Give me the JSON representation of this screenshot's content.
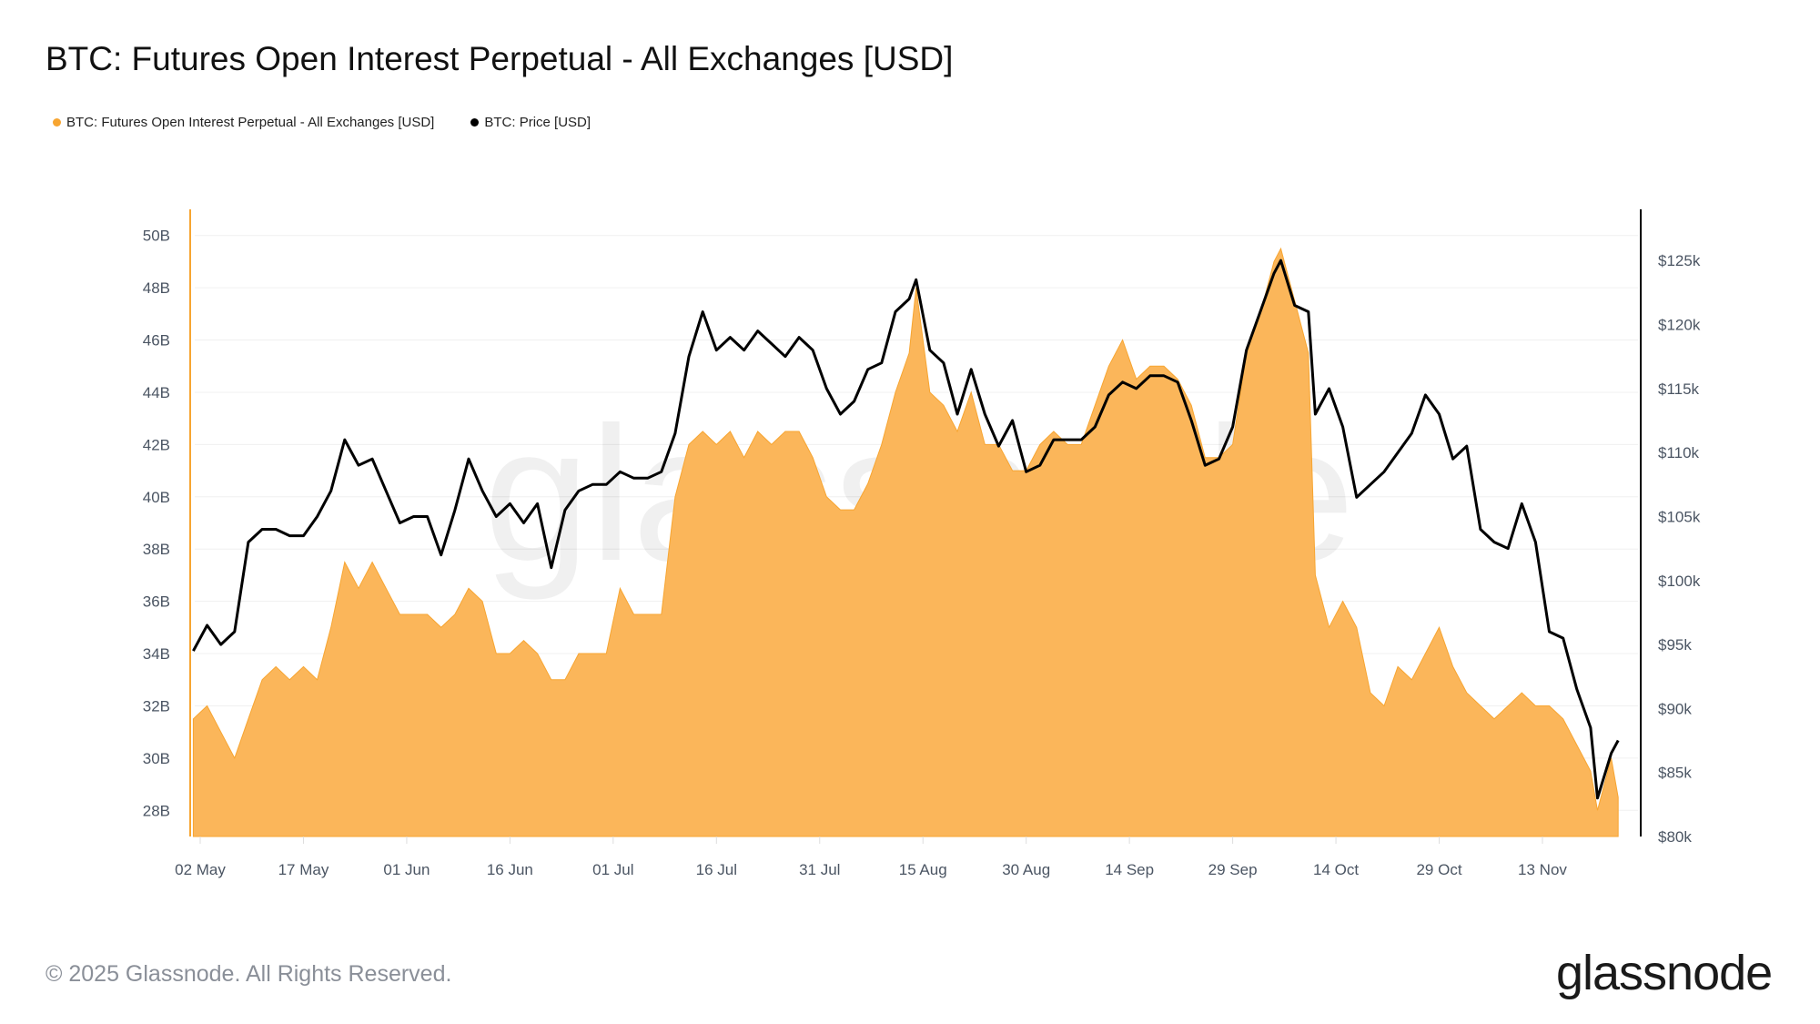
{
  "title": "BTC: Futures Open Interest Perpetual - All Exchanges [USD]",
  "footer": "© 2025 Glassnode. All Rights Reserved.",
  "logo": "glassnode",
  "watermark": "glassnode",
  "colors": {
    "open_interest": "#f7a531",
    "open_interest_fill": "#fbb65a",
    "price": "#000000",
    "grid": "#f0f0f0"
  },
  "chart_data": {
    "type": "area+line",
    "title": "BTC: Futures Open Interest Perpetual - All Exchanges [USD]",
    "legend_position": "top-left",
    "grid": true,
    "legend": [
      {
        "name": "BTC: Futures Open Interest Perpetual - All Exchanges [USD]",
        "color": "#f7a531"
      },
      {
        "name": "BTC: Price [USD]",
        "color": "#000000"
      }
    ],
    "y_left": {
      "unit": "USD billions",
      "ylim": [
        27,
        51
      ],
      "ticks": [
        28,
        30,
        32,
        34,
        36,
        38,
        40,
        42,
        44,
        46,
        48,
        50
      ],
      "tick_labels": [
        "28B",
        "30B",
        "32B",
        "34B",
        "36B",
        "38B",
        "40B",
        "42B",
        "44B",
        "46B",
        "48B",
        "50B"
      ]
    },
    "y_right": {
      "unit": "USD thousands",
      "ylim": [
        80,
        129
      ],
      "ticks": [
        80,
        85,
        90,
        95,
        100,
        105,
        110,
        115,
        120,
        125
      ],
      "tick_labels": [
        "$80k",
        "$85k",
        "$90k",
        "$95k",
        "$100k",
        "$105k",
        "$110k",
        "$115k",
        "$120k",
        "$125k"
      ]
    },
    "x_ticks": [
      "2025-05-02",
      "2025-05-17",
      "2025-06-01",
      "2025-06-16",
      "2025-07-01",
      "2025-07-16",
      "2025-07-31",
      "2025-08-15",
      "2025-08-30",
      "2025-09-14",
      "2025-09-29",
      "2025-10-14",
      "2025-10-29",
      "2025-11-13"
    ],
    "x_tick_labels": [
      "02 May",
      "17 May",
      "01 Jun",
      "16 Jun",
      "01 Jul",
      "16 Jul",
      "31 Jul",
      "15 Aug",
      "30 Aug",
      "14 Sep",
      "29 Sep",
      "14 Oct",
      "29 Oct",
      "13 Nov"
    ],
    "dates": [
      "2025-05-01",
      "2025-05-03",
      "2025-05-05",
      "2025-05-07",
      "2025-05-09",
      "2025-05-11",
      "2025-05-13",
      "2025-05-15",
      "2025-05-17",
      "2025-05-19",
      "2025-05-21",
      "2025-05-23",
      "2025-05-25",
      "2025-05-27",
      "2025-05-29",
      "2025-05-31",
      "2025-06-02",
      "2025-06-04",
      "2025-06-06",
      "2025-06-08",
      "2025-06-10",
      "2025-06-12",
      "2025-06-14",
      "2025-06-16",
      "2025-06-18",
      "2025-06-20",
      "2025-06-22",
      "2025-06-24",
      "2025-06-26",
      "2025-06-28",
      "2025-06-30",
      "2025-07-02",
      "2025-07-04",
      "2025-07-06",
      "2025-07-08",
      "2025-07-10",
      "2025-07-12",
      "2025-07-14",
      "2025-07-16",
      "2025-07-18",
      "2025-07-20",
      "2025-07-22",
      "2025-07-24",
      "2025-07-26",
      "2025-07-28",
      "2025-07-30",
      "2025-08-01",
      "2025-08-03",
      "2025-08-05",
      "2025-08-07",
      "2025-08-09",
      "2025-08-11",
      "2025-08-13",
      "2025-08-14",
      "2025-08-16",
      "2025-08-18",
      "2025-08-20",
      "2025-08-22",
      "2025-08-24",
      "2025-08-26",
      "2025-08-28",
      "2025-08-30",
      "2025-09-01",
      "2025-09-03",
      "2025-09-05",
      "2025-09-07",
      "2025-09-09",
      "2025-09-11",
      "2025-09-13",
      "2025-09-15",
      "2025-09-17",
      "2025-09-19",
      "2025-09-21",
      "2025-09-23",
      "2025-09-25",
      "2025-09-27",
      "2025-09-29",
      "2025-10-01",
      "2025-10-03",
      "2025-10-05",
      "2025-10-06",
      "2025-10-08",
      "2025-10-10",
      "2025-10-11",
      "2025-10-13",
      "2025-10-15",
      "2025-10-17",
      "2025-10-19",
      "2025-10-21",
      "2025-10-23",
      "2025-10-25",
      "2025-10-27",
      "2025-10-29",
      "2025-10-31",
      "2025-11-02",
      "2025-11-04",
      "2025-11-06",
      "2025-11-08",
      "2025-11-10",
      "2025-11-12",
      "2025-11-14",
      "2025-11-16",
      "2025-11-18",
      "2025-11-20",
      "2025-11-21",
      "2025-11-23",
      "2025-11-24"
    ],
    "series": [
      {
        "name": "BTC: Futures Open Interest Perpetual - All Exchanges [USD]",
        "axis": "left",
        "type": "area",
        "values": [
          31.5,
          32,
          31,
          30,
          31.5,
          33,
          33.5,
          33,
          33.5,
          33,
          35,
          37.5,
          36.5,
          37.5,
          36.5,
          35.5,
          35.5,
          35.5,
          35,
          35.5,
          36.5,
          36,
          34,
          34,
          34.5,
          34,
          33,
          33,
          34,
          34,
          34,
          36.5,
          35.5,
          35.5,
          35.5,
          40,
          42,
          42.5,
          42,
          42.5,
          41.5,
          42.5,
          42,
          42.5,
          42.5,
          41.5,
          40,
          39.5,
          39.5,
          40.5,
          42,
          44,
          45.5,
          48,
          44,
          43.5,
          42.5,
          44,
          42,
          42,
          41,
          41,
          42,
          42.5,
          42,
          42,
          43.5,
          45,
          46,
          44.5,
          45,
          45,
          44.5,
          43.5,
          41.5,
          41.5,
          42,
          45.5,
          47,
          49,
          49.5,
          47.5,
          45.5,
          37,
          35,
          36,
          35,
          32.5,
          32,
          33.5,
          33,
          34,
          35,
          33.5,
          32.5,
          32,
          31.5,
          32,
          32.5,
          32,
          32,
          31.5,
          30.5,
          29.5,
          28,
          30,
          28.5
        ]
      },
      {
        "name": "BTC: Price [USD]",
        "axis": "right",
        "type": "line",
        "values": [
          94.5,
          96.5,
          95,
          96,
          103,
          104,
          104,
          103.5,
          103.5,
          105,
          107,
          111,
          109,
          109.5,
          107,
          104.5,
          105,
          105,
          102,
          105.5,
          109.5,
          107,
          105,
          106,
          104.5,
          106,
          101,
          105.5,
          107,
          107.5,
          107.5,
          108.5,
          108,
          108,
          108.5,
          111.5,
          117.5,
          121,
          118,
          119,
          118,
          119.5,
          118.5,
          117.5,
          119,
          118,
          115,
          113,
          114,
          116.5,
          117,
          121,
          122,
          123.5,
          118,
          117,
          113,
          116.5,
          113,
          110.5,
          112.5,
          108.5,
          109,
          111,
          111,
          111,
          112,
          114.5,
          115.5,
          115,
          116,
          116,
          115.5,
          112.5,
          109,
          109.5,
          112,
          118,
          121,
          124,
          125,
          121.5,
          121,
          113,
          115,
          112,
          106.5,
          107.5,
          108.5,
          110,
          111.5,
          114.5,
          113,
          109.5,
          110.5,
          104,
          103,
          102.5,
          106,
          103,
          96,
          95.5,
          91.5,
          88.5,
          83,
          86.5,
          87.5
        ]
      }
    ]
  }
}
